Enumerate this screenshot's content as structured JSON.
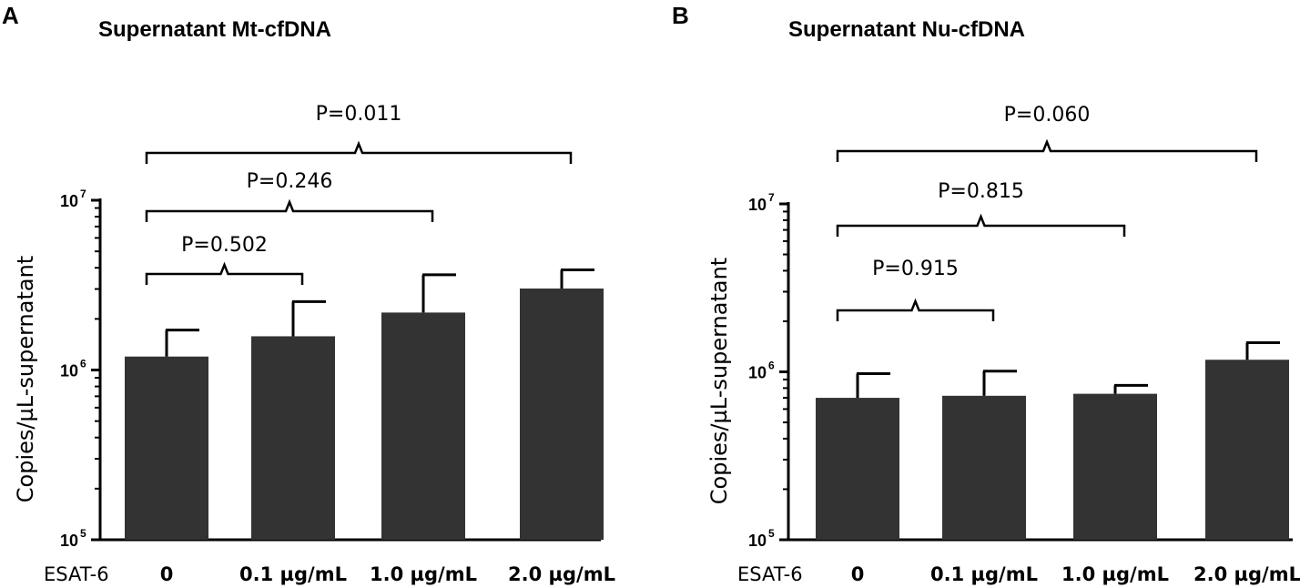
{
  "chart_data": [
    {
      "panel": "A",
      "type": "bar",
      "title": "Supernatant Mt-cfDNA",
      "ylabel": "Copies/µL-supernatant",
      "xlabel_prefix": "ESAT-6",
      "yscale": "log",
      "ylim": [
        100000,
        10000000
      ],
      "yticks": [
        {
          "base": "10",
          "exp": "5"
        },
        {
          "base": "10",
          "exp": "6"
        },
        {
          "base": "10",
          "exp": "7"
        }
      ],
      "categories": [
        "0",
        "0.1 µg/mL",
        "1.0 µg/mL",
        "2.0 µg/mL"
      ],
      "values": [
        1200000,
        1580000,
        2180000,
        3020000
      ],
      "errors_upper": [
        1720000,
        2530000,
        3640000,
        3890000
      ],
      "bar_color": "#333333",
      "comparisons": [
        {
          "from": 0,
          "to": 1,
          "label": "P=0.502"
        },
        {
          "from": 0,
          "to": 2,
          "label": "P=0.246"
        },
        {
          "from": 0,
          "to": 3,
          "label": "P=0.011"
        }
      ]
    },
    {
      "panel": "B",
      "type": "bar",
      "title": "Supernatant Nu-cfDNA",
      "ylabel": "Copies/µL-supernatant",
      "xlabel_prefix": "ESAT-6",
      "yscale": "log",
      "ylim": [
        100000,
        10000000
      ],
      "yticks": [
        {
          "base": "10",
          "exp": "5"
        },
        {
          "base": "10",
          "exp": "6"
        },
        {
          "base": "10",
          "exp": "7"
        }
      ],
      "categories": [
        "0",
        "0.1 µg/mL",
        "1.0 µg/mL",
        "2.0 µg/mL"
      ],
      "values": [
        700000,
        720000,
        740000,
        1180000
      ],
      "errors_upper": [
        975000,
        1010000,
        830000,
        1490000
      ],
      "bar_color": "#333333",
      "comparisons": [
        {
          "from": 0,
          "to": 1,
          "label": "P=0.915"
        },
        {
          "from": 0,
          "to": 2,
          "label": "P=0.815"
        },
        {
          "from": 0,
          "to": 3,
          "label": "P=0.060"
        }
      ]
    }
  ]
}
